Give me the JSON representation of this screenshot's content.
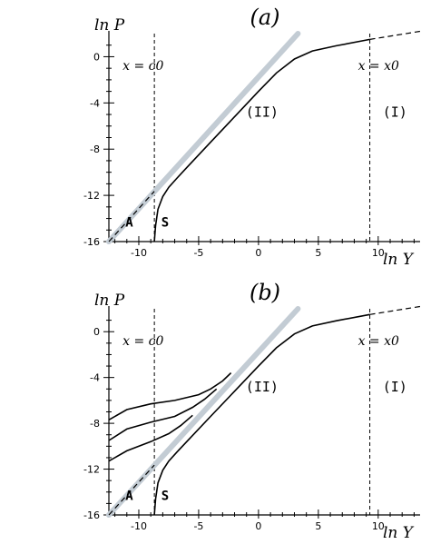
{
  "chart_data": [
    {
      "type": "line",
      "title": "(a)",
      "xlabel": "ln Y",
      "ylabel": "ln P",
      "xlim": [
        -12.5,
        13.5
      ],
      "ylim": [
        -16,
        2
      ],
      "xticks": [
        "-10",
        "-5",
        "0",
        "5",
        "10"
      ],
      "yticks": [
        "0",
        "-4",
        "-8",
        "-12",
        "-16"
      ],
      "vlines": [
        {
          "x": -8.7,
          "label": "x = c0"
        },
        {
          "x": 9.3,
          "label": "x = x0"
        }
      ],
      "region_labels": [
        "(II)",
        "(I)",
        "A",
        "S"
      ],
      "series": [
        {
          "style": "gray-thick",
          "x": [
            -12.5,
            3.3
          ],
          "y": [
            -16,
            2
          ]
        },
        {
          "style": "black-solid",
          "x": [
            -8.7,
            -8.6,
            -8.4,
            -8.0,
            -7.5,
            -6.8,
            -6.0,
            -4.0,
            -2.0,
            0.0,
            1.5,
            3.0,
            4.5,
            6.5,
            9.3
          ],
          "y": [
            -16,
            -14.6,
            -13.2,
            -12.1,
            -11.3,
            -10.5,
            -9.6,
            -7.4,
            -5.2,
            -3.0,
            -1.4,
            -0.2,
            0.5,
            0.95,
            1.5
          ]
        },
        {
          "style": "black-dashed",
          "x": [
            -12.5,
            -8.7
          ],
          "y": [
            -16,
            -11.65
          ]
        },
        {
          "style": "black-dashed",
          "x": [
            9.3,
            13.5
          ],
          "y": [
            1.5,
            2.2
          ]
        }
      ]
    },
    {
      "type": "line",
      "title": "(b)",
      "xlabel": "ln Y",
      "ylabel": "ln P",
      "xlim": [
        -12.5,
        13.5
      ],
      "ylim": [
        -16,
        2
      ],
      "xticks": [
        "-10",
        "-5",
        "0",
        "5",
        "10"
      ],
      "yticks": [
        "0",
        "-4",
        "-8",
        "-12",
        "-16"
      ],
      "vlines": [
        {
          "x": -8.7,
          "label": "x = c0"
        },
        {
          "x": 9.3,
          "label": "x = x0"
        }
      ],
      "region_labels": [
        "(II)",
        "(I)",
        "A",
        "S"
      ],
      "series": [
        {
          "style": "gray-thick",
          "x": [
            -12.5,
            3.3
          ],
          "y": [
            -16,
            2
          ]
        },
        {
          "style": "black-solid",
          "x": [
            -8.7,
            -8.6,
            -8.4,
            -8.0,
            -7.5,
            -6.8,
            -6.0,
            -4.0,
            -2.0,
            0.0,
            1.5,
            3.0,
            4.5,
            6.5,
            9.3
          ],
          "y": [
            -16,
            -14.6,
            -13.2,
            -12.1,
            -11.3,
            -10.5,
            -9.6,
            -7.4,
            -5.2,
            -3.0,
            -1.4,
            -0.2,
            0.5,
            0.95,
            1.5
          ]
        },
        {
          "style": "black-solid",
          "x": [
            -12.5,
            -11,
            -9,
            -7,
            -5,
            -4,
            -3,
            -2.3
          ],
          "y": [
            -7.7,
            -6.8,
            -6.3,
            -6.0,
            -5.5,
            -5.0,
            -4.3,
            -3.6
          ]
        },
        {
          "style": "black-solid",
          "x": [
            -12.5,
            -11,
            -9,
            -7,
            -5.5,
            -4.5,
            -3.5
          ],
          "y": [
            -9.5,
            -8.5,
            -7.9,
            -7.4,
            -6.6,
            -5.9,
            -5.0
          ]
        },
        {
          "style": "black-solid",
          "x": [
            -12.5,
            -11,
            -9,
            -7.5,
            -6.5,
            -5.5
          ],
          "y": [
            -11.3,
            -10.4,
            -9.6,
            -8.9,
            -8.2,
            -7.3
          ]
        },
        {
          "style": "black-dashed",
          "x": [
            -12.5,
            -8.7
          ],
          "y": [
            -16,
            -11.65
          ]
        },
        {
          "style": "black-dashed",
          "x": [
            9.3,
            13.5
          ],
          "y": [
            1.5,
            2.2
          ]
        }
      ]
    }
  ]
}
